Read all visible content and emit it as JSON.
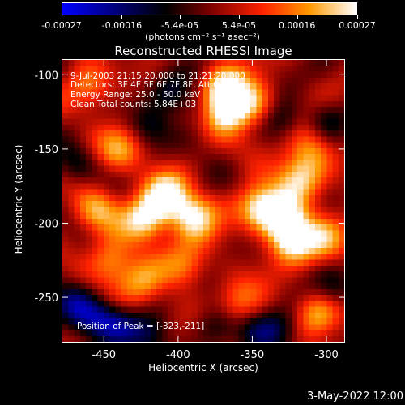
{
  "colorbar": {
    "ticks": [
      "-0.00027",
      "-0.00016",
      "-5.4e-05",
      "5.4e-05",
      "0.00016",
      "0.00027"
    ],
    "tick_values": [
      -0.00027,
      -0.00016,
      -5.4e-05,
      5.4e-05,
      0.00016,
      0.00027
    ],
    "range": [
      -0.00027,
      0.00027
    ],
    "unit_label": "(photons cm⁻² s⁻¹ asec⁻²)",
    "colors": [
      "#0000ff",
      "#000000",
      "#7a0000",
      "#ff2200",
      "#ff9900",
      "#ffffff"
    ]
  },
  "chart_data": {
    "type": "heatmap",
    "title": "Reconstructed RHESSI Image",
    "xlabel": "Heliocentric X (arcsec)",
    "ylabel": "Heliocentric Y (arcsec)",
    "xlim": [
      -478,
      -288
    ],
    "ylim": [
      -280,
      -90
    ],
    "x_ticks": [
      "-450",
      "-400",
      "-350",
      "-300"
    ],
    "x_tick_values": [
      -450,
      -400,
      -350,
      -300
    ],
    "y_ticks": [
      "-100",
      "-150",
      "-200",
      "-250"
    ],
    "y_tick_values": [
      -100,
      -150,
      -200,
      -250
    ],
    "annotations": {
      "time": "9-Jul-2003 21:15:20.000 to 21:21:20.000",
      "detectors": "Detectors: 3F 4F 5F 6F 7F 8F, Att 0",
      "energy": "Energy Range: 25.0 - 50.0 keV",
      "clean": "Clean    Total counts: 5.84E+03",
      "peak": "Position of Peak = [-323,-211]"
    },
    "peak": [
      -323,
      -211
    ],
    "hotspots": [
      {
        "x": -422,
        "y": -198,
        "intensity": 0.00026
      },
      {
        "x": -408,
        "y": -182,
        "intensity": 0.00024
      },
      {
        "x": -390,
        "y": -195,
        "intensity": 0.00023
      },
      {
        "x": -370,
        "y": -110,
        "intensity": 0.00025
      },
      {
        "x": -368,
        "y": -125,
        "intensity": 0.00022
      },
      {
        "x": -350,
        "y": -120,
        "intensity": 0.0002
      },
      {
        "x": -345,
        "y": -190,
        "intensity": 0.00022
      },
      {
        "x": -330,
        "y": -195,
        "intensity": 0.00023
      },
      {
        "x": -323,
        "y": -211,
        "intensity": 0.00027
      },
      {
        "x": -318,
        "y": -170,
        "intensity": 0.00021
      },
      {
        "x": -310,
        "y": -150,
        "intensity": 0.00016
      },
      {
        "x": -440,
        "y": -150,
        "intensity": 0.00015
      },
      {
        "x": -455,
        "y": -190,
        "intensity": 0.00016
      },
      {
        "x": -445,
        "y": -225,
        "intensity": 0.00018
      },
      {
        "x": -425,
        "y": -240,
        "intensity": 0.00014
      },
      {
        "x": -395,
        "y": -230,
        "intensity": 0.00015
      },
      {
        "x": -360,
        "y": -255,
        "intensity": 0.00012
      },
      {
        "x": -305,
        "y": -260,
        "intensity": 0.00018
      },
      {
        "x": -300,
        "y": -210,
        "intensity": 0.00014
      },
      {
        "x": -460,
        "y": -110,
        "intensity": 0.00013
      }
    ],
    "coldspots": [
      {
        "x": -470,
        "y": -255,
        "intensity": -0.00017
      },
      {
        "x": -455,
        "y": -265,
        "intensity": -0.00016
      },
      {
        "x": -440,
        "y": -270,
        "intensity": -0.00014
      },
      {
        "x": -420,
        "y": -275,
        "intensity": -0.00013
      },
      {
        "x": -405,
        "y": -112,
        "intensity": -0.00012
      },
      {
        "x": -385,
        "y": -120,
        "intensity": -0.00011
      },
      {
        "x": -375,
        "y": -270,
        "intensity": -0.00012
      },
      {
        "x": -345,
        "y": -275,
        "intensity": -0.0001
      },
      {
        "x": -330,
        "y": -130,
        "intensity": -0.00011
      },
      {
        "x": -300,
        "y": -130,
        "intensity": -0.00012
      },
      {
        "x": -470,
        "y": -160,
        "intensity": -0.0001
      },
      {
        "x": -420,
        "y": -135,
        "intensity": -0.0001
      },
      {
        "x": -330,
        "y": -270,
        "intensity": -0.00012
      },
      {
        "x": -295,
        "y": -245,
        "intensity": -0.0001
      }
    ]
  },
  "footer_date": "3-May-2022 12:00"
}
